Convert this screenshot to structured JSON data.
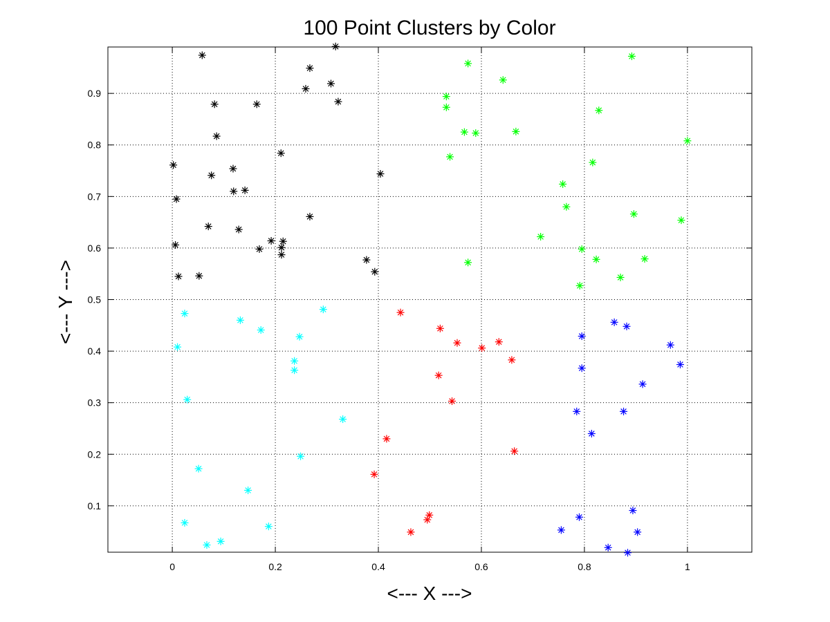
{
  "chart_data": {
    "type": "scatter",
    "title": "100 Point Clusters by Color",
    "xlabel": "<--- X --->",
    "ylabel": "<--- Y --->",
    "xlim": [
      -0.125,
      1.125
    ],
    "ylim": [
      0.01,
      0.99
    ],
    "xticks": [
      0,
      0.2,
      0.4,
      0.6,
      0.8,
      1
    ],
    "xtick_labels": [
      "0",
      "0.2",
      "0.4",
      "0.6",
      "0.8",
      "1"
    ],
    "yticks": [
      0.1,
      0.2,
      0.3,
      0.4,
      0.5,
      0.6,
      0.7,
      0.8,
      0.9
    ],
    "ytick_labels": [
      "0.1",
      "0.2",
      "0.3",
      "0.4",
      "0.5",
      "0.6",
      "0.7",
      "0.8",
      "0.9"
    ],
    "grid": true,
    "marker": "asterisk",
    "series": [
      {
        "color": "#000000",
        "points": [
          [
            0.058,
            0.974
          ],
          [
            0.317,
            0.991
          ],
          [
            0.267,
            0.949
          ],
          [
            0.308,
            0.919
          ],
          [
            0.259,
            0.909
          ],
          [
            0.322,
            0.884
          ],
          [
            0.082,
            0.879
          ],
          [
            0.164,
            0.879
          ],
          [
            0.086,
            0.817
          ],
          [
            0.211,
            0.784
          ],
          [
            0.002,
            0.761
          ],
          [
            0.118,
            0.754
          ],
          [
            0.404,
            0.744
          ],
          [
            0.076,
            0.741
          ],
          [
            0.141,
            0.712
          ],
          [
            0.119,
            0.71
          ],
          [
            0.008,
            0.695
          ],
          [
            0.267,
            0.661
          ],
          [
            0.07,
            0.642
          ],
          [
            0.129,
            0.636
          ],
          [
            0.215,
            0.613
          ],
          [
            0.192,
            0.614
          ],
          [
            0.006,
            0.606
          ],
          [
            0.212,
            0.601
          ],
          [
            0.169,
            0.598
          ],
          [
            0.212,
            0.587
          ],
          [
            0.377,
            0.577
          ],
          [
            0.393,
            0.554
          ],
          [
            0.012,
            0.545
          ],
          [
            0.052,
            0.546
          ]
        ]
      },
      {
        "color": "#00ff00",
        "points": [
          [
            0.892,
            0.972
          ],
          [
            0.574,
            0.958
          ],
          [
            0.642,
            0.926
          ],
          [
            0.532,
            0.894
          ],
          [
            0.532,
            0.873
          ],
          [
            0.828,
            0.867
          ],
          [
            0.567,
            0.825
          ],
          [
            0.589,
            0.823
          ],
          [
            0.667,
            0.826
          ],
          [
            1.0,
            0.808
          ],
          [
            0.539,
            0.777
          ],
          [
            0.816,
            0.766
          ],
          [
            0.758,
            0.724
          ],
          [
            0.765,
            0.68
          ],
          [
            0.896,
            0.666
          ],
          [
            0.988,
            0.654
          ],
          [
            0.715,
            0.622
          ],
          [
            0.795,
            0.598
          ],
          [
            0.574,
            0.572
          ],
          [
            0.823,
            0.578
          ],
          [
            0.917,
            0.579
          ],
          [
            0.87,
            0.543
          ],
          [
            0.791,
            0.527
          ]
        ]
      },
      {
        "color": "#00ffff",
        "points": [
          [
            0.024,
            0.473
          ],
          [
            0.132,
            0.46
          ],
          [
            0.293,
            0.481
          ],
          [
            0.172,
            0.441
          ],
          [
            0.247,
            0.428
          ],
          [
            0.01,
            0.408
          ],
          [
            0.237,
            0.381
          ],
          [
            0.237,
            0.363
          ],
          [
            0.029,
            0.306
          ],
          [
            0.331,
            0.268
          ],
          [
            0.249,
            0.196
          ],
          [
            0.051,
            0.172
          ],
          [
            0.147,
            0.13
          ],
          [
            0.024,
            0.067
          ],
          [
            0.187,
            0.06
          ],
          [
            0.094,
            0.031
          ],
          [
            0.067,
            0.024
          ]
        ]
      },
      {
        "color": "#ff0000",
        "points": [
          [
            0.443,
            0.475
          ],
          [
            0.52,
            0.444
          ],
          [
            0.553,
            0.416
          ],
          [
            0.601,
            0.406
          ],
          [
            0.634,
            0.418
          ],
          [
            0.659,
            0.383
          ],
          [
            0.517,
            0.353
          ],
          [
            0.543,
            0.303
          ],
          [
            0.416,
            0.23
          ],
          [
            0.392,
            0.161
          ],
          [
            0.664,
            0.206
          ],
          [
            0.499,
            0.082
          ],
          [
            0.495,
            0.073
          ],
          [
            0.463,
            0.049
          ]
        ]
      },
      {
        "color": "#0000ff",
        "points": [
          [
            0.858,
            0.456
          ],
          [
            0.882,
            0.448
          ],
          [
            0.795,
            0.429
          ],
          [
            0.967,
            0.412
          ],
          [
            0.795,
            0.367
          ],
          [
            0.986,
            0.374
          ],
          [
            0.913,
            0.336
          ],
          [
            0.785,
            0.283
          ],
          [
            0.876,
            0.283
          ],
          [
            0.814,
            0.24
          ],
          [
            0.894,
            0.091
          ],
          [
            0.79,
            0.078
          ],
          [
            0.755,
            0.053
          ],
          [
            0.903,
            0.049
          ],
          [
            0.846,
            0.019
          ],
          [
            0.884,
            0.009
          ]
        ]
      }
    ]
  }
}
